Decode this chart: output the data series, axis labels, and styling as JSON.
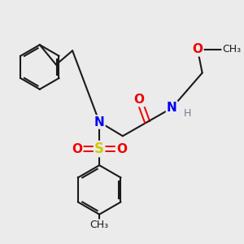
{
  "background_color": "#ebebeb",
  "colors": {
    "C": "#1a1a1a",
    "N": "#0000ee",
    "O": "#ee0000",
    "S": "#cccc00",
    "H": "#708090",
    "bond": "#1a1a1a"
  }
}
